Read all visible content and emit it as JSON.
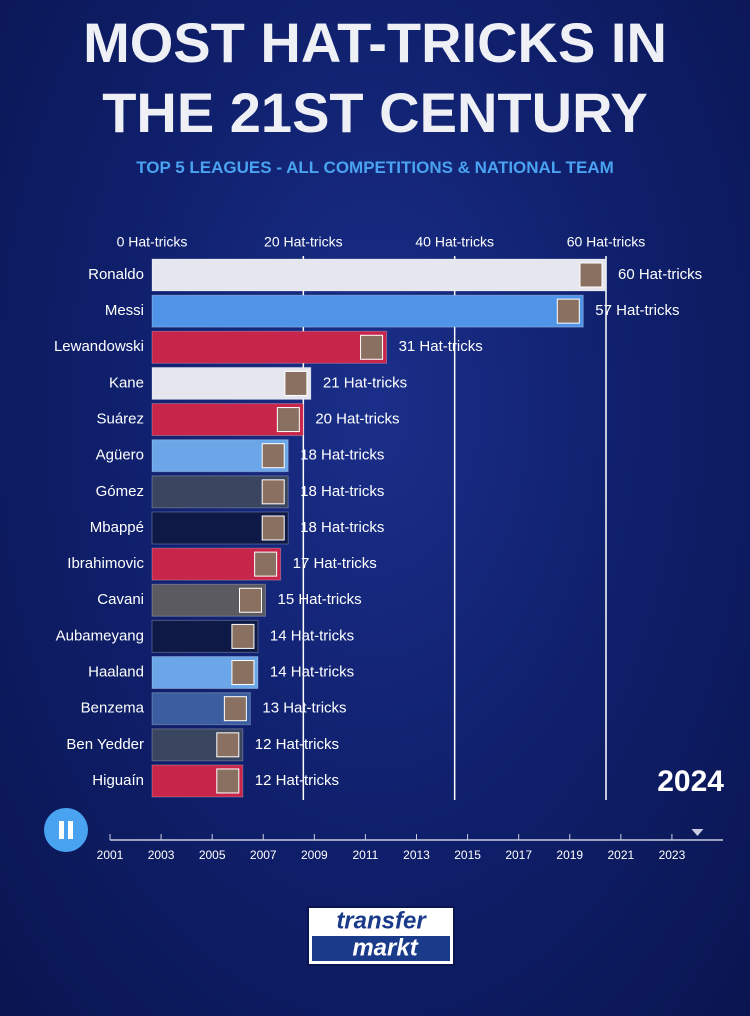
{
  "title": "MOST HAT-TRICKS IN THE 21ST CENTURY",
  "subtitle": "TOP 5 LEAGUES - ALL COMPETITIONS & NATIONAL TEAM",
  "logo": {
    "line1": "transfer",
    "line2": "markt"
  },
  "chart_data": {
    "type": "bar",
    "orientation": "horizontal",
    "categories": [
      "Ronaldo",
      "Messi",
      "Lewandowski",
      "Kane",
      "Suárez",
      "Agüero",
      "Gómez",
      "Mbappé",
      "Ibrahimovic",
      "Cavani",
      "Aubameyang",
      "Haaland",
      "Benzema",
      "Ben Yedder",
      "Higuaín"
    ],
    "values": [
      60,
      57,
      31,
      21,
      20,
      18,
      18,
      18,
      17,
      15,
      14,
      14,
      13,
      12,
      12
    ],
    "value_labels": [
      "60 Hat-tricks",
      "57 Hat-tricks",
      "31 Hat-tricks",
      "21 Hat-tricks",
      "20 Hat-tricks",
      "18 Hat-tricks",
      "18 Hat-tricks",
      "18 Hat-tricks",
      "17 Hat-tricks",
      "15 Hat-tricks",
      "14 Hat-tricks",
      "14 Hat-tricks",
      "13 Hat-tricks",
      "12 Hat-tricks",
      "12 Hat-tricks"
    ],
    "colors": [
      "#e6e6ee",
      "#4f94e6",
      "#c8254a",
      "#e6e6ee",
      "#c8254a",
      "#6aa6e8",
      "#3a4560",
      "#0e1a45",
      "#c8254a",
      "#5a5a60",
      "#0e1a45",
      "#6aa6e8",
      "#3a5ea0",
      "#3a4560",
      "#c8254a"
    ],
    "xlim": [
      0,
      60
    ],
    "xticks": [
      {
        "value": 0,
        "label": "0 Hat-tricks"
      },
      {
        "value": 20,
        "label": "20 Hat-tricks"
      },
      {
        "value": 40,
        "label": "40 Hat-tricks"
      },
      {
        "value": 60,
        "label": "60 Hat-tricks"
      }
    ],
    "grid": true,
    "timeline": {
      "xlim": [
        2001,
        2025
      ],
      "xticks": [
        2001,
        2003,
        2005,
        2007,
        2009,
        2011,
        2013,
        2015,
        2017,
        2019,
        2021,
        2023
      ],
      "current": 2024
    }
  }
}
